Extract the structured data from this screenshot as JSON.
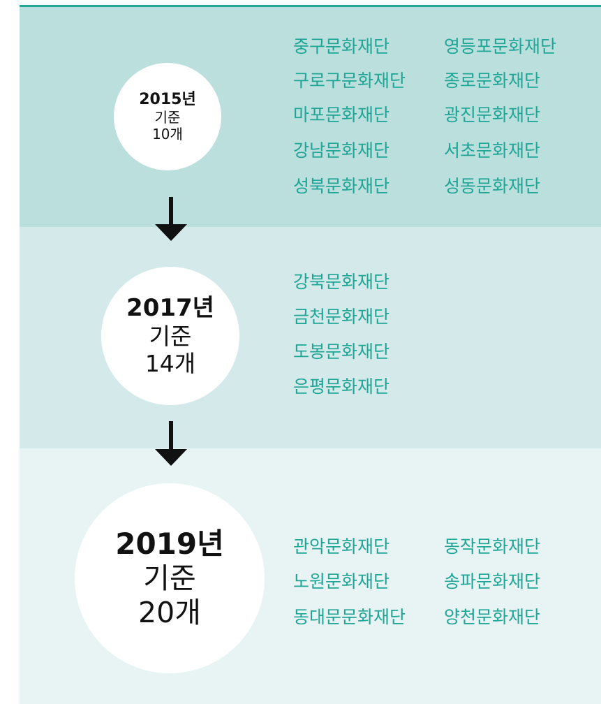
{
  "sections": [
    {
      "year": "2015년",
      "basis": "기준",
      "count": "10개",
      "rows": [
        [
          "중구문화재단",
          "영등포문화재단"
        ],
        [
          "구로구문화재단",
          "종로문화재단"
        ],
        [
          "마포문화재단",
          "광진문화재단"
        ],
        [
          "강남문화재단",
          "서초문화재단"
        ],
        [
          "성북문화재단",
          "성동문화재단"
        ]
      ]
    },
    {
      "year": "2017년",
      "basis": "기준",
      "count": "14개",
      "rows": [
        [
          "강북문화재단"
        ],
        [
          "금천문화재단"
        ],
        [
          "도봉문화재단"
        ],
        [
          "은평문화재단"
        ]
      ]
    },
    {
      "year": "2019년",
      "basis": "기준",
      "count": "20개",
      "rows": [
        [
          "관악문화재단",
          "동작문화재단"
        ],
        [
          "노원문화재단",
          "송파문화재단"
        ],
        [
          "동대문문화재단",
          "양천문화재단"
        ]
      ]
    }
  ]
}
